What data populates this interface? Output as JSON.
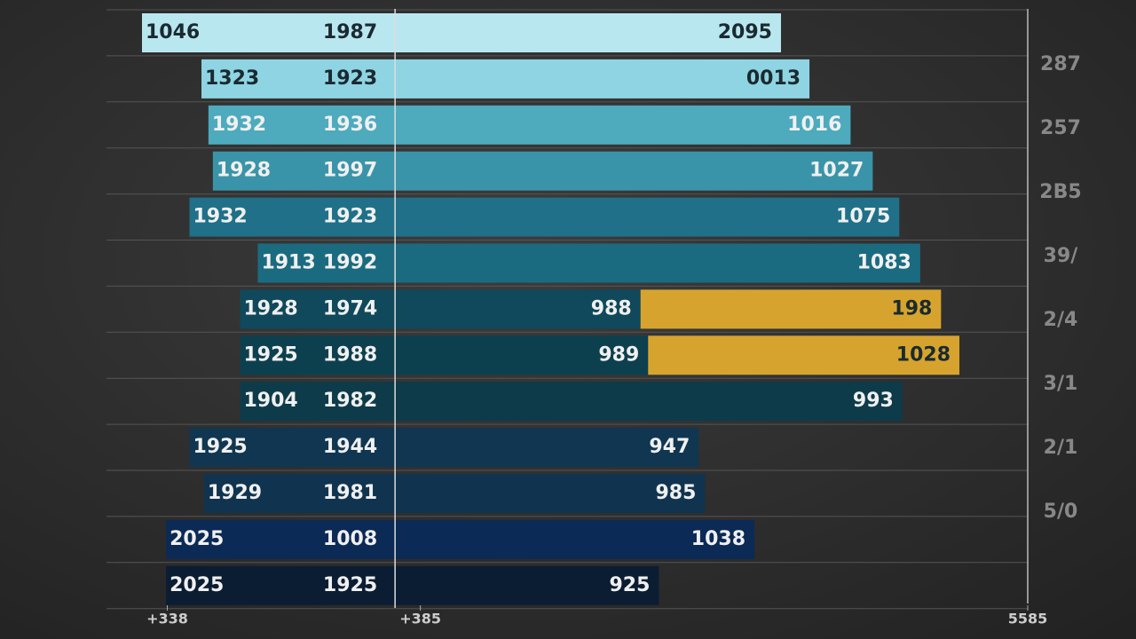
{
  "chart_data": {
    "type": "bar",
    "orientation": "horizontal",
    "categories": [
      "1046",
      "1323",
      "1932",
      "1928",
      "1932",
      "1913",
      "1928",
      "1925",
      "1904",
      "1925",
      "1929",
      "2025",
      "2025"
    ],
    "middle_labels": [
      "1987",
      "1923",
      "1936",
      "1997",
      "1923",
      "1992",
      "1974",
      "1988",
      "1982",
      "1944",
      "1981",
      "1008",
      "1925"
    ],
    "left_values": [
      -40,
      -30.6,
      -29.5,
      -28.8,
      -32.5,
      -21.7,
      -24.5,
      -24.5,
      -24.5,
      -32.5,
      -30.2,
      -36.2,
      -36.2
    ],
    "colors": [
      "#b9e7f0",
      "#8fd4e2",
      "#4eaabd",
      "#3a94a9",
      "#1f7088",
      "#1b6b80",
      "#10495b",
      "#0d404f",
      "#0d3b4a",
      "#103651",
      "#10344f",
      "#0b2a55",
      "#0b1d33"
    ],
    "series": [
      {
        "values": [
          61,
          65.5,
          72,
          75.5,
          79.7,
          83,
          38.8,
          40,
          80.2,
          48,
          49,
          56.8,
          41.7
        ],
        "labels": [
          "2095",
          "0013",
          "1016",
          "1027",
          "1075",
          "1083",
          "988",
          "989",
          "993",
          "947",
          "985",
          "1038",
          "925"
        ]
      },
      {
        "color": "#d6a42e",
        "values": [
          null,
          null,
          null,
          null,
          null,
          null,
          47.5,
          49.2,
          null,
          null,
          null,
          null,
          null
        ],
        "labels": [
          null,
          null,
          null,
          null,
          null,
          null,
          "198",
          "1028",
          null,
          null,
          null,
          null,
          null
        ]
      }
    ],
    "xlim": [
      -40,
      100
    ],
    "xticks": [
      {
        "value": -36,
        "label": "+338"
      },
      {
        "value": 4,
        "label": "+385"
      },
      {
        "value": 100,
        "label": "5585"
      }
    ],
    "right_labels": [
      "287",
      "257",
      "2B5",
      "39/",
      "2/4",
      "3/1",
      "2/1",
      "5/0"
    ],
    "grid": true
  }
}
